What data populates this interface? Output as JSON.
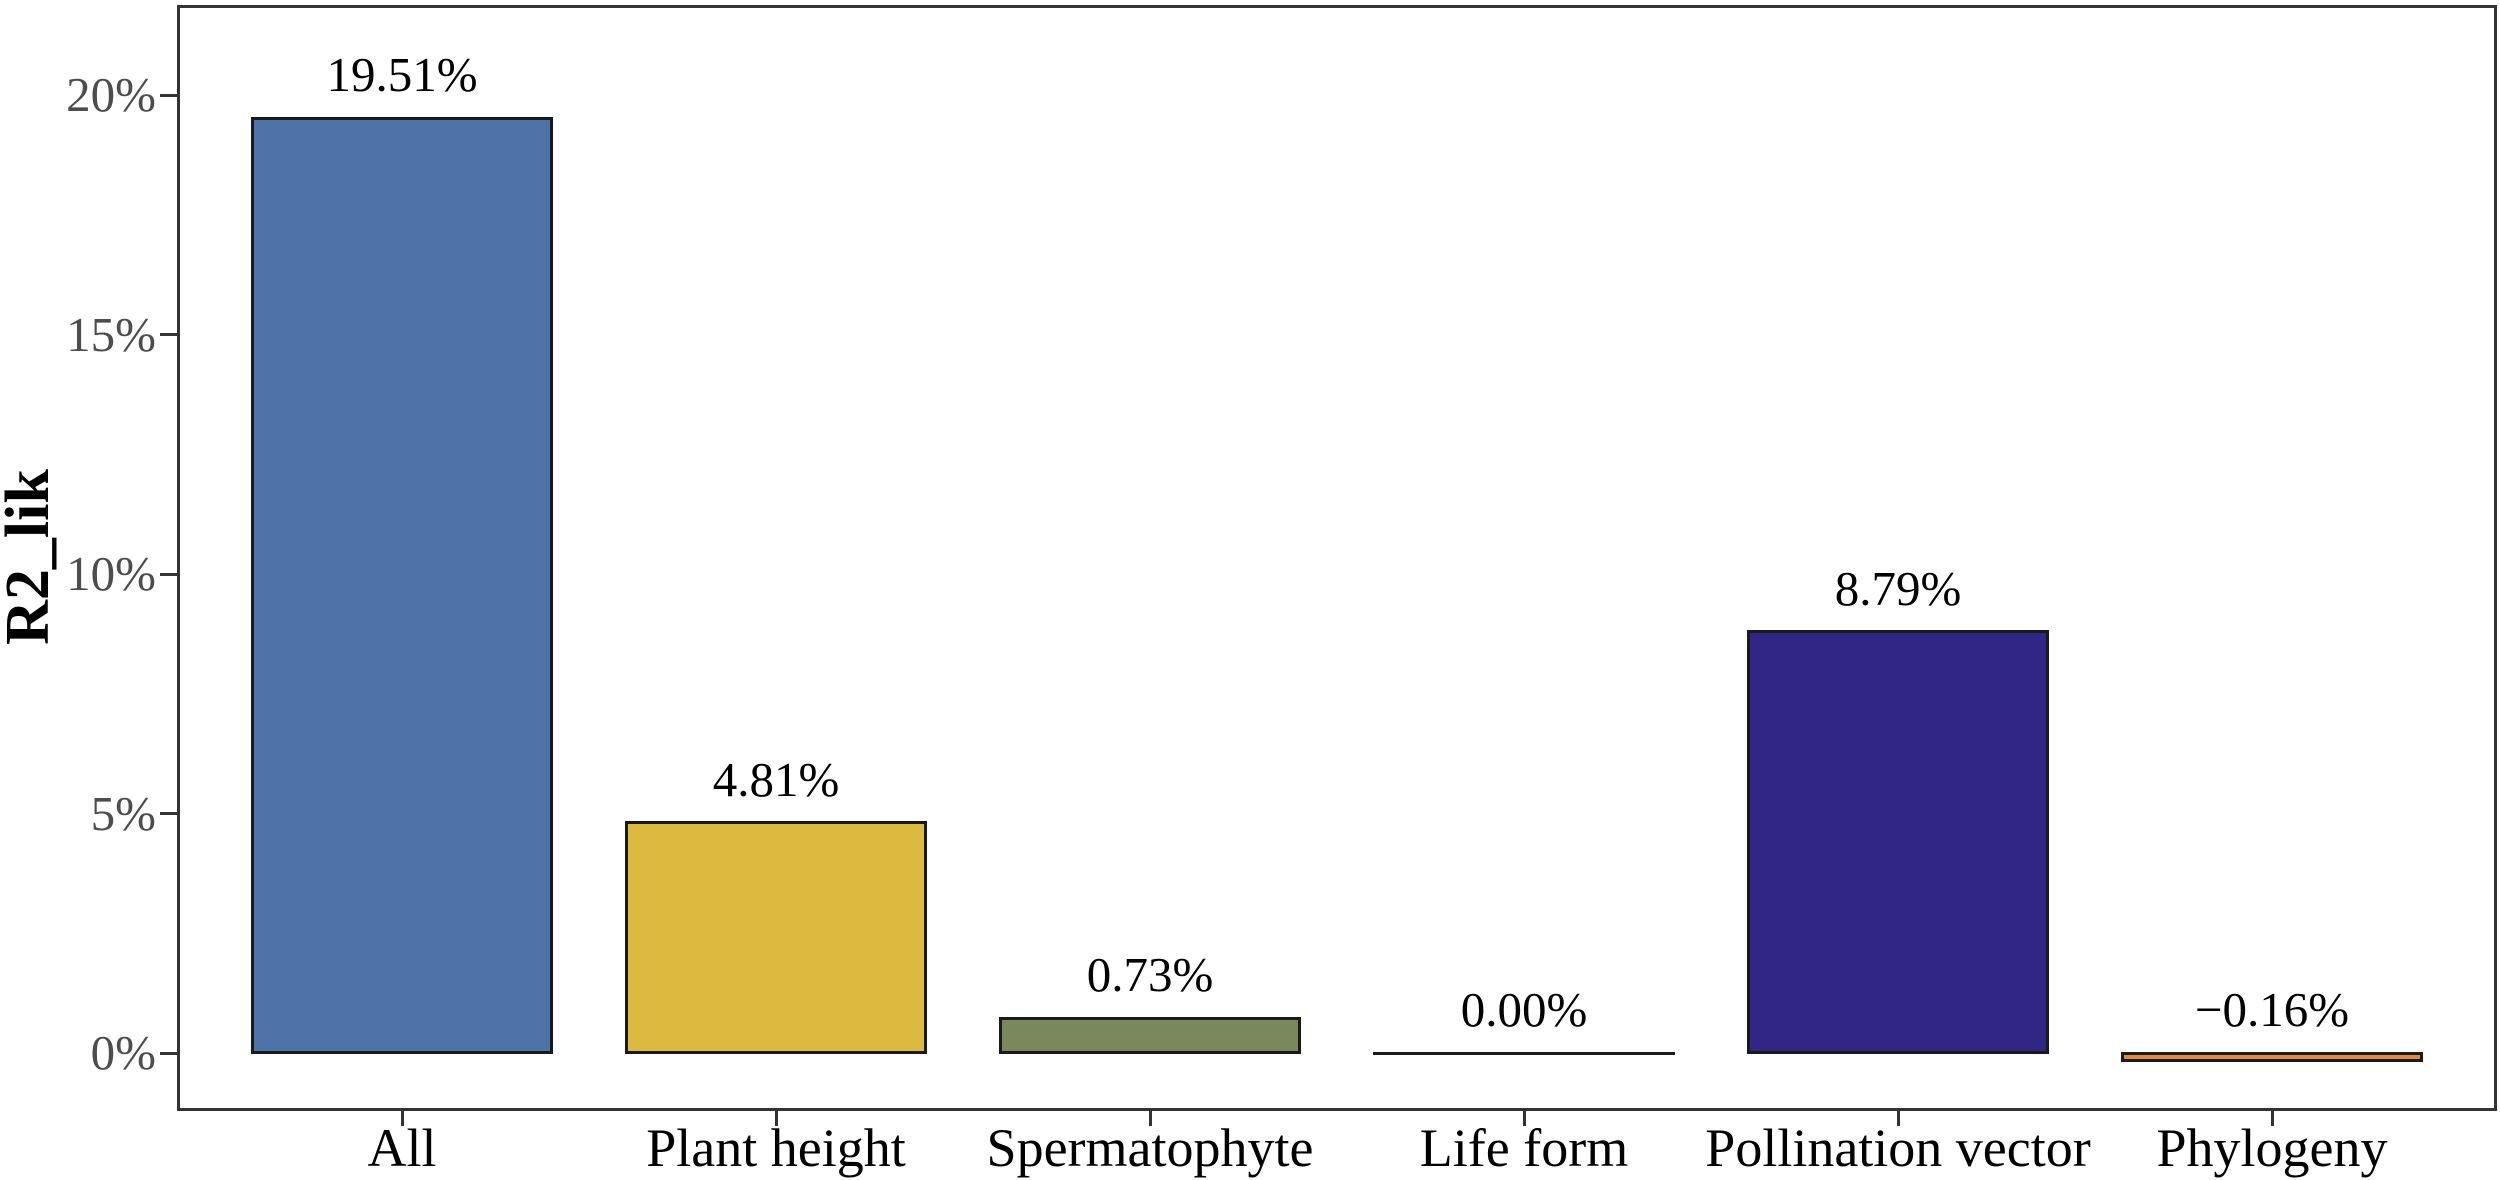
{
  "chart_data": {
    "type": "bar",
    "title": "",
    "xlabel": "",
    "ylabel": "R2_lik",
    "categories": [
      "All",
      "Plant height",
      "Spermatophyte",
      "Life form",
      "Pollination vector",
      "Phylogeny"
    ],
    "values": [
      19.51,
      4.81,
      0.73,
      0.0,
      8.79,
      -0.16
    ],
    "value_labels": [
      "19.51%",
      "4.81%",
      "0.73%",
      "0.00%",
      "8.79%",
      "−0.16%"
    ],
    "bar_colors": [
      "#4e74a7",
      "#dcb93f",
      "#79895d",
      "#ffffff",
      "#312586",
      "#e08b3d"
    ],
    "bar_outline_color": "#1a1a1a",
    "y_ticks": [
      {
        "value": 0,
        "label": "0%"
      },
      {
        "value": 5,
        "label": "5%"
      },
      {
        "value": 10,
        "label": "10%"
      },
      {
        "value": 15,
        "label": "15%"
      },
      {
        "value": 20,
        "label": "20%"
      }
    ],
    "ylim": [
      -1.2,
      21.9
    ],
    "grid": false,
    "legend": null,
    "panel_border_color": "#333333",
    "y_axis_text_color": "#4d4d4d",
    "x_axis_text_color": "#000000"
  }
}
